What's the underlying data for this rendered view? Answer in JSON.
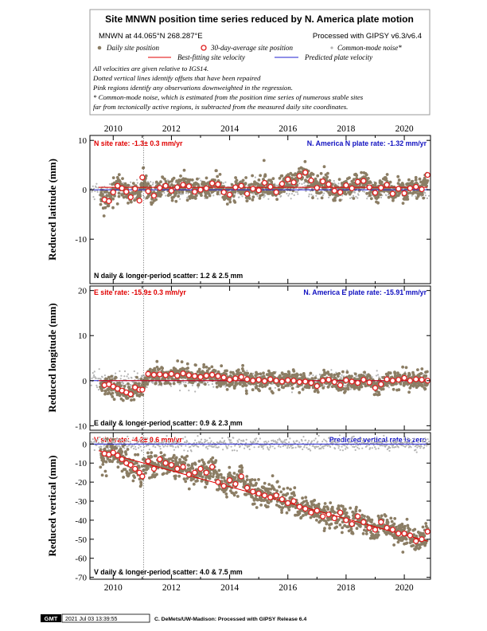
{
  "header": {
    "title": "Site MNWN position time series reduced by N. America plate motion",
    "location": "MNWN at 44.065°N 268.287°E",
    "processed": "Processed with GIPSY v6.3/v6.4",
    "legend": {
      "daily": "Daily site position",
      "avg30": "30-day-average site position",
      "cm": "Common-mode noise*",
      "fit": "Best-fitting site velocity",
      "pred": "Predicted plate velocity"
    },
    "notes": [
      "All velocities are given relative to IGS14.",
      "Dotted vertical lines identify offsets that have been repaired",
      "Pink regions identify any observations downweighted in the regression.",
      "* Common-mode noise, which is estimated from the position time series of numerous stable sites",
      "far from tectonically active regions, is subtracted from the measured daily site coordinates."
    ]
  },
  "colors": {
    "daily": "#8b7d64",
    "common_mode": "#b4b4b4",
    "avg_fill": "#ffffff",
    "avg_edge": "#e02020",
    "fit_line": "#e00000",
    "plate_line": "#2020d0",
    "site_text": "#e00000",
    "plate_text": "#1010c0"
  },
  "footer": {
    "logo": "GMT",
    "timestamp": "2021 Jul 03 13:39:55",
    "credit": "C. DeMets/UW-Madison: Processed with GIPSY Release 6.4"
  },
  "chart_data": [
    {
      "type": "scatter",
      "component": "N",
      "ylabel": "Reduced latitude (mm)",
      "xlim": [
        2009.2,
        2020.9
      ],
      "ylim": [
        -19,
        11
      ],
      "yticks": [
        10,
        0,
        -10
      ],
      "xticks": [
        2010,
        2012,
        2014,
        2016,
        2018,
        2020
      ],
      "site_rate": "N site rate: -1.3± 0.3 mm/yr",
      "plate_rate": "N. America N plate rate: -1.32 mm/yr",
      "scatter": "N daily & longer-period scatter:   1.2 &   2.5 mm",
      "offset_epoch": 2011.05,
      "fit_line": [
        [
          2009.5,
          0.5
        ],
        [
          2020.8,
          0.5
        ]
      ],
      "plate_line": [
        [
          2009.2,
          0.0
        ],
        [
          2020.9,
          0.0
        ]
      ],
      "avg30_x": [
        2009.7,
        2009.85,
        2010.0,
        2010.15,
        2010.3,
        2010.45,
        2010.6,
        2010.75,
        2010.9,
        2011.0,
        2011.2,
        2011.4,
        2011.6,
        2011.8,
        2012.0,
        2012.2,
        2012.4,
        2012.6,
        2012.8,
        2013.0,
        2013.2,
        2013.4,
        2013.6,
        2013.8,
        2014.0,
        2014.2,
        2014.4,
        2014.6,
        2014.8,
        2015.0,
        2015.2,
        2015.4,
        2015.6,
        2015.8,
        2016.0,
        2016.2,
        2016.4,
        2016.6,
        2016.8,
        2017.0,
        2017.2,
        2017.4,
        2017.6,
        2017.8,
        2018.0,
        2018.2,
        2018.4,
        2018.6,
        2018.8,
        2019.0,
        2019.2,
        2019.4,
        2019.6,
        2019.8,
        2020.0,
        2020.2,
        2020.4,
        2020.6,
        2020.8
      ],
      "avg30_y": [
        -2.0,
        -2.3,
        -0.5,
        0.8,
        0.3,
        -0.4,
        -1.5,
        0.2,
        -2.2,
        2.5,
        -0.3,
        -1.2,
        0.4,
        0.8,
        -0.2,
        0.5,
        1.0,
        0.7,
        -0.4,
        0.0,
        0.3,
        1.3,
        1.1,
        -0.5,
        -1.0,
        0.5,
        0.8,
        -0.8,
        0.2,
        -0.1,
        1.4,
        0.6,
        -0.5,
        1.2,
        2.1,
        1.5,
        2.8,
        3.5,
        1.9,
        0.4,
        1.7,
        1.1,
        -0.2,
        -0.5,
        0.9,
        0.3,
        1.6,
        1.8,
        0.5,
        -0.6,
        0.4,
        1.0,
        -0.8,
        0.2,
        -0.7,
        0.3,
        0.6,
        0.1,
        3.0
      ]
    },
    {
      "type": "scatter",
      "component": "E",
      "ylabel": "Reduced longitude (mm)",
      "xlim": [
        2009.2,
        2020.9
      ],
      "ylim": [
        -11,
        21
      ],
      "yticks": [
        20,
        10,
        0,
        -10
      ],
      "xticks": [
        2010,
        2012,
        2014,
        2016,
        2018,
        2020
      ],
      "site_rate": "E site rate: -15.9± 0.3 mm/yr",
      "plate_rate": "N. America E plate rate: -15.91 mm/yr",
      "scatter": "E daily & longer-period scatter:   0.9 &   2.3 mm",
      "offset_epoch": 2011.05,
      "fit_line": [
        [
          2009.5,
          0.0
        ],
        [
          2020.8,
          0.0
        ]
      ],
      "plate_line": [
        [
          2009.2,
          0.0
        ],
        [
          2020.9,
          0.0
        ]
      ],
      "avg30_x": [
        2009.7,
        2009.85,
        2010.0,
        2010.15,
        2010.3,
        2010.45,
        2010.6,
        2010.75,
        2010.9,
        2011.0,
        2011.2,
        2011.4,
        2011.6,
        2011.8,
        2012.0,
        2012.2,
        2012.4,
        2012.6,
        2012.8,
        2013.0,
        2013.2,
        2013.4,
        2013.6,
        2013.8,
        2014.0,
        2014.2,
        2014.4,
        2014.6,
        2014.8,
        2015.0,
        2015.2,
        2015.4,
        2015.6,
        2015.8,
        2016.0,
        2016.2,
        2016.4,
        2016.6,
        2016.8,
        2017.0,
        2017.2,
        2017.4,
        2017.6,
        2017.8,
        2018.0,
        2018.2,
        2018.4,
        2018.6,
        2018.8,
        2019.0,
        2019.2,
        2019.4,
        2019.6,
        2019.8,
        2020.0,
        2020.2,
        2020.4,
        2020.6,
        2020.8
      ],
      "avg30_y": [
        -1.0,
        -0.8,
        -1.3,
        -1.8,
        -2.2,
        -2.6,
        -3.0,
        -1.5,
        -2.0,
        -2.0,
        1.5,
        1.3,
        1.4,
        1.2,
        1.5,
        1.1,
        1.6,
        1.2,
        1.0,
        0.8,
        1.1,
        1.3,
        1.0,
        0.7,
        0.2,
        0.5,
        0.8,
        0.3,
        0.0,
        0.2,
        -0.1,
        0.3,
        0.0,
        -0.2,
        0.1,
        0.0,
        -0.3,
        -0.2,
        -0.5,
        -1.2,
        0.0,
        0.2,
        -0.3,
        -1.0,
        0.1,
        -0.2,
        -0.5,
        0.2,
        -0.4,
        -1.6,
        -0.8,
        0.3,
        0.0,
        0.2,
        0.6,
        0.0,
        0.3,
        0.2,
        0.0
      ]
    },
    {
      "type": "scatter",
      "component": "V",
      "ylabel": "Reduced vertical (mm)",
      "xlim": [
        2009.2,
        2020.9
      ],
      "ylim": [
        -71,
        6
      ],
      "yticks": [
        0,
        -10,
        -20,
        -30,
        -40,
        -50,
        -60,
        -70
      ],
      "xticks": [
        2010,
        2012,
        2014,
        2016,
        2018,
        2020
      ],
      "site_rate": "V site rate: -4.2± 0.6 mm/yr",
      "plate_rate": "Predicted vertical rate is zero",
      "scatter": "V daily & longer-period scatter:   4.0 &   7.5 mm",
      "offset_epoch": 2011.05,
      "fit_line": [
        [
          2009.5,
          -3.5
        ],
        [
          2020.8,
          -51.0
        ]
      ],
      "plate_line": [
        [
          2009.2,
          0.0
        ],
        [
          2020.9,
          0.0
        ]
      ],
      "avg30_x": [
        2009.7,
        2009.85,
        2010.0,
        2010.15,
        2010.3,
        2010.45,
        2010.6,
        2010.75,
        2010.9,
        2011.0,
        2011.2,
        2011.4,
        2011.6,
        2011.8,
        2012.0,
        2012.2,
        2012.4,
        2012.6,
        2012.8,
        2013.0,
        2013.2,
        2013.4,
        2013.6,
        2013.8,
        2014.0,
        2014.2,
        2014.4,
        2014.6,
        2014.8,
        2015.0,
        2015.2,
        2015.4,
        2015.6,
        2015.8,
        2016.0,
        2016.2,
        2016.4,
        2016.6,
        2016.8,
        2017.0,
        2017.2,
        2017.4,
        2017.6,
        2017.8,
        2018.0,
        2018.2,
        2018.4,
        2018.6,
        2018.8,
        2019.0,
        2019.2,
        2019.4,
        2019.6,
        2019.8,
        2020.0,
        2020.2,
        2020.4,
        2020.6,
        2020.8
      ],
      "avg30_y": [
        -5.0,
        -5.5,
        -4.5,
        -6.0,
        -8.0,
        -10.0,
        -11.0,
        -13.0,
        -15.0,
        -17.0,
        -9.0,
        -13.0,
        -8.0,
        -10.0,
        -11.0,
        -13.0,
        -12.0,
        -16.0,
        -15.0,
        -13.0,
        -15.0,
        -12.0,
        -20.0,
        -22.0,
        -19.0,
        -21.0,
        -17.0,
        -23.0,
        -25.0,
        -26.0,
        -27.0,
        -28.0,
        -27.0,
        -29.0,
        -31.0,
        -30.0,
        -33.0,
        -34.0,
        -36.0,
        -35.0,
        -38.0,
        -37.0,
        -39.0,
        -36.0,
        -40.0,
        -42.0,
        -38.0,
        -41.0,
        -44.0,
        -45.0,
        -41.0,
        -44.0,
        -45.0,
        -47.0,
        -47.0,
        -48.0,
        -51.0,
        -50.0,
        -46.0
      ]
    }
  ]
}
